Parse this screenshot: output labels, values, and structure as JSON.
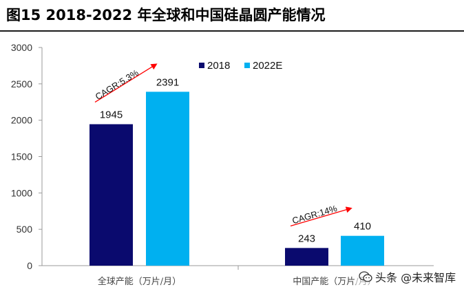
{
  "title": "图15 2018-2022 年全球和中国硅晶圆产能情况",
  "colors": {
    "s2018": "#0a0a6e",
    "s2022": "#00b0f0",
    "arrow": "#ff0000"
  },
  "watermark": "头条 @未来智库",
  "chart_data": {
    "type": "bar",
    "categories": [
      "全球产能（万片/月）",
      "中国产能（万片/月）"
    ],
    "series": [
      {
        "name": "2018",
        "values": [
          1945,
          243
        ]
      },
      {
        "name": "2022E",
        "values": [
          2391,
          410
        ]
      }
    ],
    "data_labels": [
      [
        "1945",
        "243"
      ],
      [
        "2391",
        "410"
      ]
    ],
    "ylim": [
      0,
      3000
    ],
    "yticks": [
      0,
      500,
      1000,
      1500,
      2000,
      2500,
      3000
    ],
    "annotations": [
      "CAGR:5.3%",
      "CAGR:14%"
    ],
    "legend": "top-right",
    "grid": false
  }
}
